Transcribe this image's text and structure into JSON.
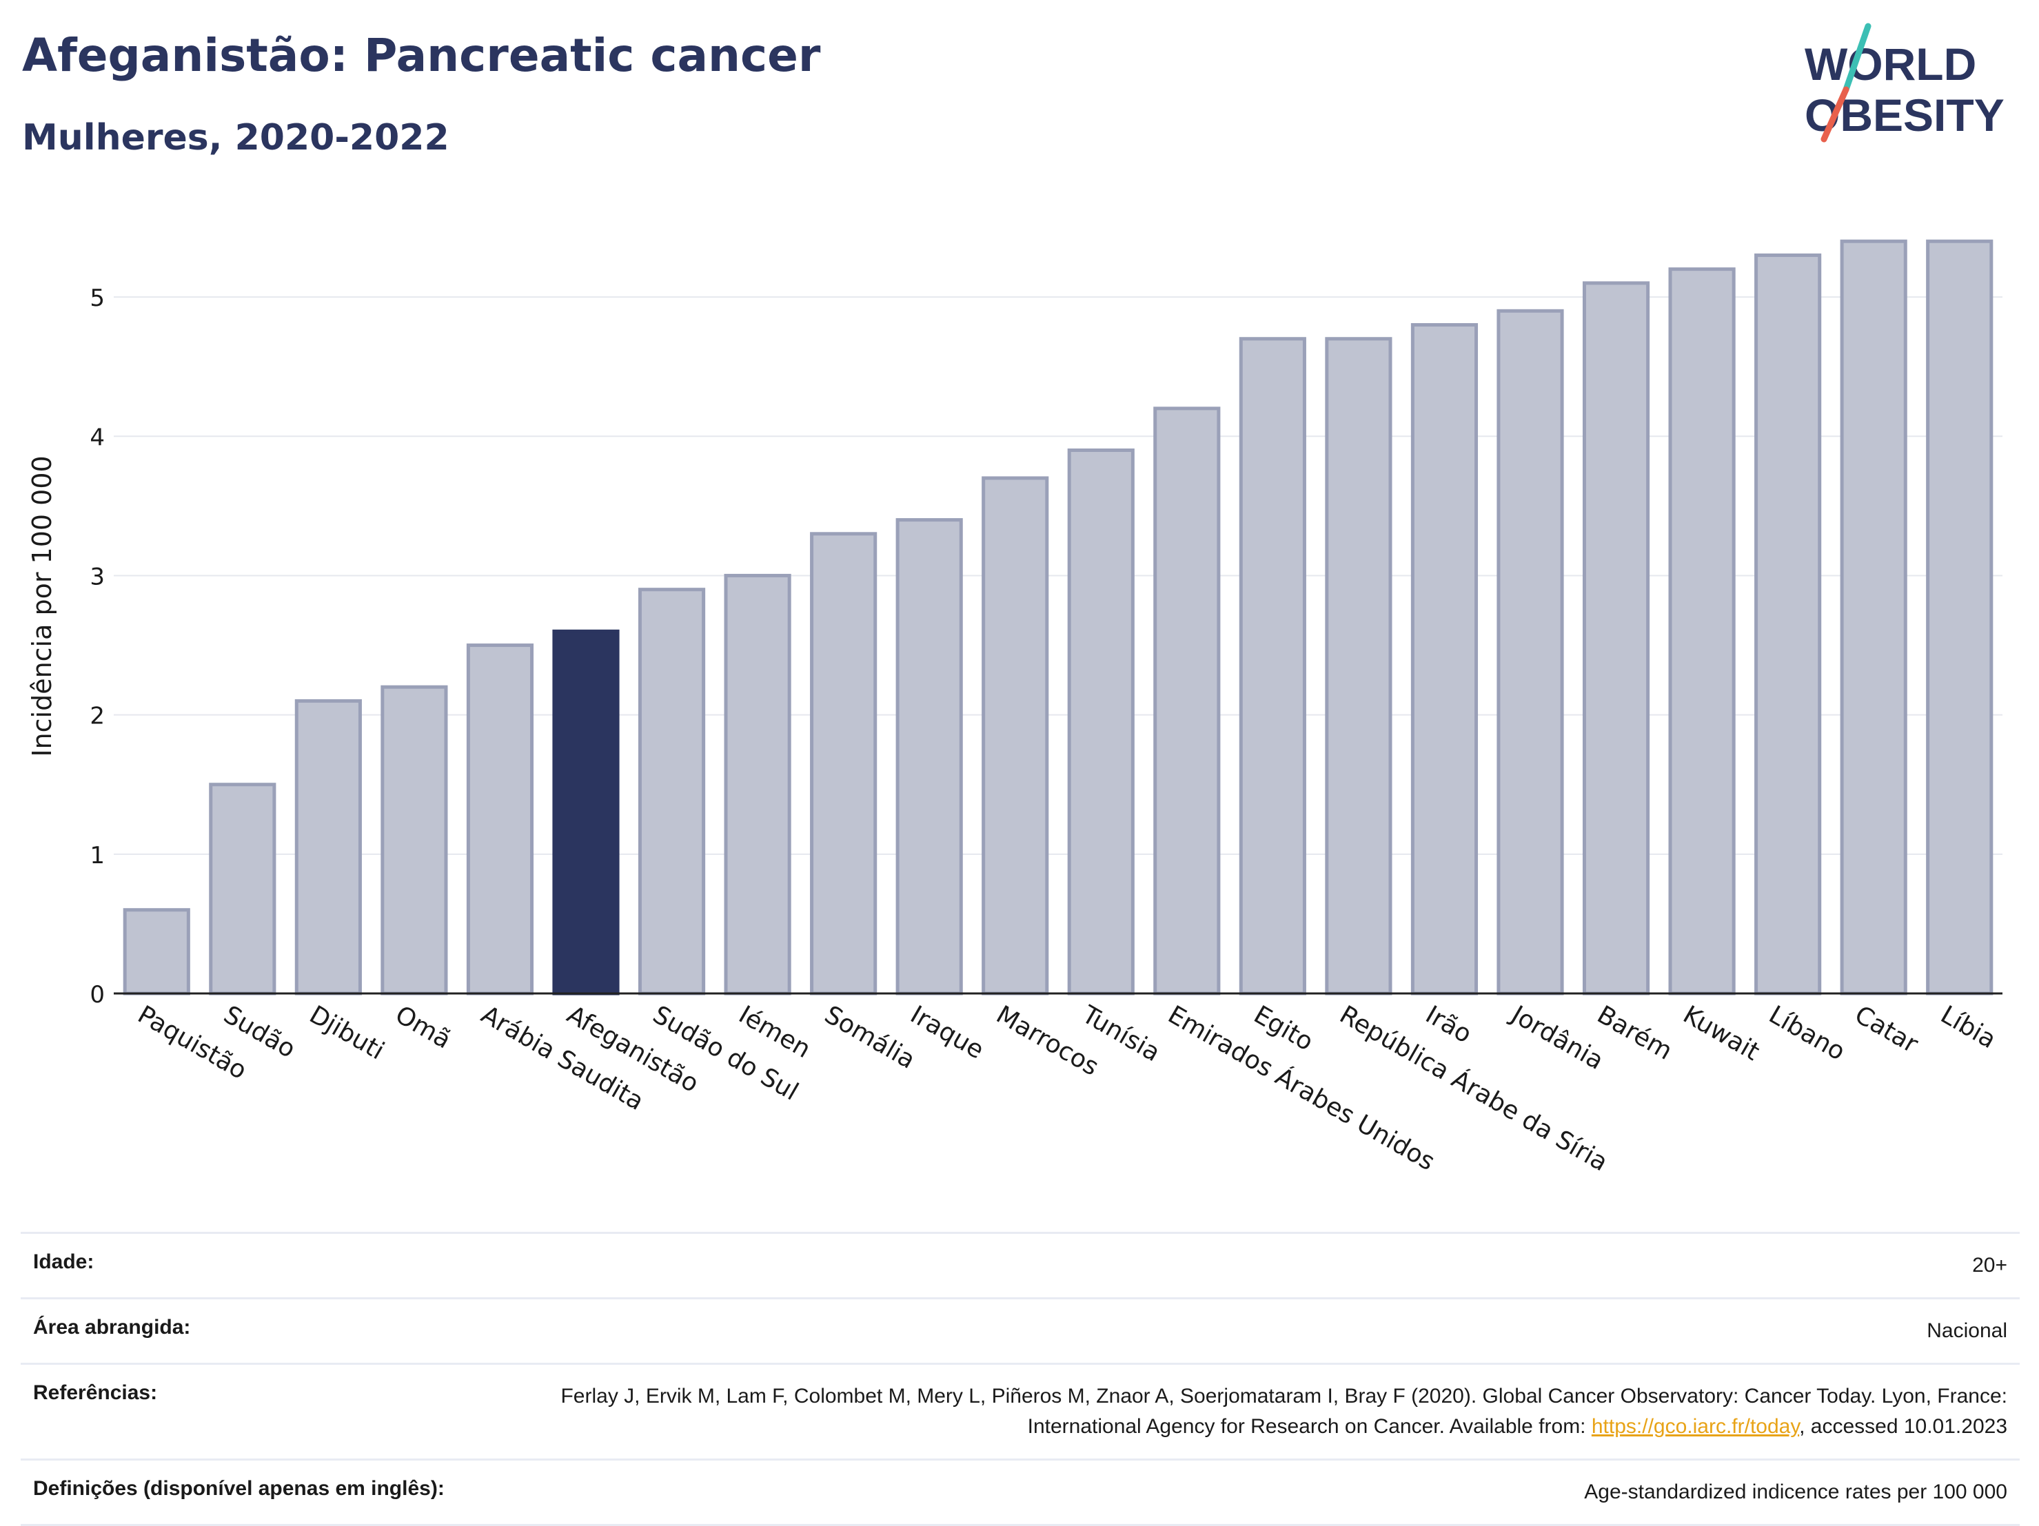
{
  "header": {
    "title": "Afeganistão: Pancreatic cancer",
    "subtitle": "Mulheres, 2020-2022"
  },
  "logo": {
    "line1": "WORLD",
    "line2": "OBESITY",
    "colors": {
      "text": "#2b355f",
      "slash_top": "#3cbfb4",
      "slash_bottom": "#e8604c"
    }
  },
  "colors": {
    "bar_default": "#bfc3d1",
    "bar_default_stroke": "#9aa0b8",
    "bar_highlight": "#2b355f",
    "grid": "#e6e8ee",
    "axis_text": "#1a1a1a"
  },
  "chart_data": {
    "type": "bar",
    "ylabel": "Incidência por 100 000",
    "ylim": [
      0,
      5.5
    ],
    "yticks": [
      0,
      1,
      2,
      3,
      4,
      5
    ],
    "grid": true,
    "highlight": "Afeganistão",
    "categories": [
      "Paquistão",
      "Sudão",
      "Djibuti",
      "Omã",
      "Arábia Saudita",
      "Afeganistão",
      "Sudão do Sul",
      "Iémen",
      "Somália",
      "Iraque",
      "Marrocos",
      "Tunísia",
      "Emirados Árabes Unidos",
      "Egito",
      "República Árabe da Síria",
      "Irão",
      "Jordânia",
      "Barém",
      "Kuwait",
      "Líbano",
      "Catar",
      "Líbia"
    ],
    "values": [
      0.6,
      1.5,
      2.1,
      2.2,
      2.5,
      2.6,
      2.9,
      3.0,
      3.3,
      3.4,
      3.7,
      3.9,
      4.2,
      4.7,
      4.7,
      4.8,
      4.9,
      5.1,
      5.2,
      5.3,
      5.4,
      5.4
    ]
  },
  "meta": {
    "age_label": "Idade:",
    "age_value": "20+",
    "area_label": "Área abrangida:",
    "area_value": "Nacional",
    "refs_label": "Referências:",
    "refs_text_1": "Ferlay J, Ervik M, Lam F, Colombet M, Mery L, Piñeros M, Znaor A, Soerjomataram I, Bray F (2020). Global Cancer Observatory: Cancer Today. Lyon, France: International Agency for Research on Cancer. Available from: ",
    "refs_link": "https://gco.iarc.fr/today",
    "refs_text_2": ", accessed 10.01.2023",
    "defs_label": "Definições (disponível apenas em inglês):",
    "defs_value": "Age-standardized indicence rates per 100 000"
  }
}
